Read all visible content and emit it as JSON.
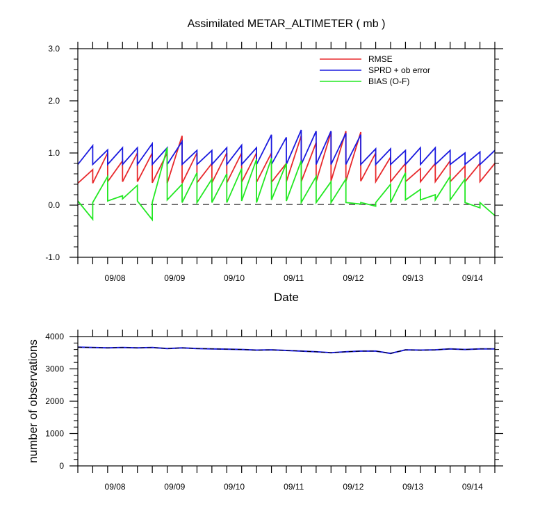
{
  "chart_data": [
    {
      "type": "line",
      "title": "Assimilated METAR_ALTIMETER ( mb )",
      "xlabel": "Date",
      "ylabel": "",
      "ylim": [
        -1.0,
        3.0
      ],
      "yticks": [
        "-1.0",
        "0.0",
        "1.0",
        "2.0",
        "3.0"
      ],
      "xlim": [
        0,
        28
      ],
      "xticks": [
        {
          "x": 2.5,
          "label": "09/08"
        },
        {
          "x": 6.5,
          "label": "09/09"
        },
        {
          "x": 10.5,
          "label": "09/10"
        },
        {
          "x": 14.5,
          "label": "09/11"
        },
        {
          "x": 18.5,
          "label": "09/12"
        },
        {
          "x": 22.5,
          "label": "09/13"
        },
        {
          "x": 26.5,
          "label": "09/14"
        }
      ],
      "zero_line": "dashed",
      "legend_position": "top-right",
      "series": [
        {
          "name": "RMSE",
          "color": "#e8282b",
          "values": [
            [
              0.42,
              0.68
            ],
            [
              0.42,
              1.0
            ],
            [
              0.45,
              0.85
            ],
            [
              0.45,
              1.0
            ],
            [
              0.45,
              1.0
            ],
            [
              0.43,
              1.0
            ],
            [
              0.42,
              1.33
            ],
            [
              0.42,
              1.0
            ],
            [
              0.43,
              0.8
            ],
            [
              0.43,
              1.0
            ],
            [
              0.43,
              1.0
            ],
            [
              0.44,
              1.0
            ],
            [
              0.44,
              1.0
            ],
            [
              0.44,
              0.8
            ],
            [
              0.45,
              1.33
            ],
            [
              0.45,
              1.2
            ],
            [
              0.45,
              1.4
            ],
            [
              0.46,
              1.42
            ],
            [
              0.46,
              1.4
            ],
            [
              0.46,
              1.0
            ],
            [
              0.45,
              0.92
            ],
            [
              0.45,
              0.8
            ],
            [
              0.45,
              0.7
            ],
            [
              0.45,
              0.8
            ],
            [
              0.45,
              0.85
            ],
            [
              0.45,
              0.75
            ],
            [
              0.45,
              0.8
            ],
            [
              0.45,
              0.8
            ]
          ]
        },
        {
          "name": "SPRD + ob error",
          "color": "#1a1adf",
          "values": [
            [
              0.78,
              1.14
            ],
            [
              0.78,
              1.06
            ],
            [
              0.78,
              1.1
            ],
            [
              0.78,
              1.1
            ],
            [
              0.78,
              1.18
            ],
            [
              0.78,
              1.1
            ],
            [
              0.78,
              1.22
            ],
            [
              0.78,
              1.05
            ],
            [
              0.78,
              1.05
            ],
            [
              0.78,
              1.1
            ],
            [
              0.78,
              1.15
            ],
            [
              0.78,
              1.1
            ],
            [
              0.78,
              1.35
            ],
            [
              0.78,
              1.3
            ],
            [
              0.78,
              1.44
            ],
            [
              0.78,
              1.42
            ],
            [
              0.78,
              1.42
            ],
            [
              0.78,
              1.38
            ],
            [
              0.78,
              1.35
            ],
            [
              0.78,
              1.08
            ],
            [
              0.78,
              1.08
            ],
            [
              0.78,
              1.05
            ],
            [
              0.78,
              1.1
            ],
            [
              0.78,
              1.1
            ],
            [
              0.78,
              1.05
            ],
            [
              0.78,
              1.0
            ],
            [
              0.78,
              1.02
            ],
            [
              0.78,
              1.05
            ]
          ]
        },
        {
          "name": "BIAS (O-F)",
          "color": "#22e822",
          "values": [
            [
              0.08,
              -0.27
            ],
            [
              0.05,
              0.55
            ],
            [
              0.08,
              0.18
            ],
            [
              0.12,
              0.38
            ],
            [
              0.08,
              -0.28
            ],
            [
              0.05,
              1.1
            ],
            [
              0.1,
              0.4
            ],
            [
              0.05,
              0.62
            ],
            [
              0.05,
              0.5
            ],
            [
              0.05,
              0.6
            ],
            [
              0.05,
              0.7
            ],
            [
              0.08,
              0.88
            ],
            [
              0.05,
              0.9
            ],
            [
              0.1,
              0.8
            ],
            [
              0.08,
              0.85
            ],
            [
              0.05,
              0.55
            ],
            [
              0.05,
              0.45
            ],
            [
              0.05,
              0.5
            ],
            [
              0.05,
              0.02
            ],
            [
              0.05,
              -0.02
            ],
            [
              0.05,
              0.4
            ],
            [
              0.05,
              0.62
            ],
            [
              0.1,
              0.3
            ],
            [
              0.1,
              0.2
            ],
            [
              0.1,
              0.55
            ],
            [
              0.1,
              0.5
            ],
            [
              0.05,
              -0.05
            ],
            [
              0.05,
              -0.2
            ]
          ]
        }
      ]
    },
    {
      "type": "line",
      "title": "",
      "xlabel": "",
      "ylabel": "number of observations",
      "ylim": [
        0,
        4000
      ],
      "yticks": [
        "0",
        "1000",
        "2000",
        "3000",
        "4000"
      ],
      "xlim": [
        0,
        28
      ],
      "xticks": [
        {
          "x": 2.5,
          "label": "09/08"
        },
        {
          "x": 6.5,
          "label": "09/09"
        },
        {
          "x": 10.5,
          "label": "09/10"
        },
        {
          "x": 14.5,
          "label": "09/11"
        },
        {
          "x": 18.5,
          "label": "09/12"
        },
        {
          "x": 22.5,
          "label": "09/13"
        },
        {
          "x": 26.5,
          "label": "09/14"
        }
      ],
      "series": [
        {
          "name": "",
          "color": "#1a1adf",
          "x": [
            0,
            1,
            2,
            3,
            4,
            5,
            6,
            7,
            8,
            9,
            10,
            11,
            12,
            13,
            14,
            15,
            16,
            17,
            18,
            19,
            20,
            21,
            22,
            23,
            24,
            25,
            26,
            27,
            28
          ],
          "values": [
            3670,
            3660,
            3650,
            3660,
            3650,
            3660,
            3630,
            3650,
            3630,
            3620,
            3610,
            3600,
            3580,
            3590,
            3570,
            3550,
            3530,
            3500,
            3530,
            3550,
            3550,
            3480,
            3590,
            3580,
            3590,
            3620,
            3600,
            3620,
            3620
          ]
        }
      ]
    }
  ]
}
